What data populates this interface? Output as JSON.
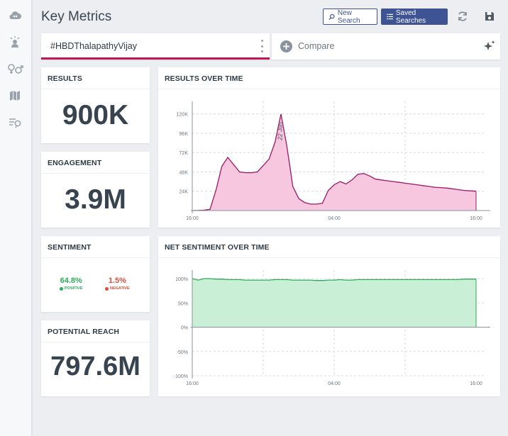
{
  "page": {
    "title": "Key Metrics"
  },
  "sidebar": {
    "icons": [
      "cloud-icon",
      "person-sparkle-icon",
      "gender-icon",
      "map-icon",
      "feedback-icon"
    ]
  },
  "toolbar": {
    "new_search_label": "New Search",
    "saved_searches_label": "Saved Searches",
    "icons": [
      "search-icon",
      "list-icon",
      "refresh-icon",
      "save-icon"
    ]
  },
  "search": {
    "term": "#HBDThalapathyVijay",
    "compare_label": "Compare"
  },
  "colors": {
    "accent": "#c2185b",
    "brand": "#3e5393",
    "positive": "#2eaa5c",
    "negative": "#d54f3b",
    "results_fill": "#f7c6df",
    "sentiment_fill": "#c9efd6"
  },
  "metrics": {
    "results": {
      "title": "RESULTS",
      "value": "900K"
    },
    "engagement": {
      "title": "ENGAGEMENT",
      "value": "3.9M"
    },
    "sentiment": {
      "title": "SENTIMENT",
      "positive_pct": "64.8%",
      "positive_label": "POSITIVE",
      "negative_pct": "1.5%",
      "negative_label": "NEGATIVE"
    },
    "reach": {
      "title": "POTENTIAL REACH",
      "value": "797.6M"
    }
  },
  "chart_data": [
    {
      "type": "area",
      "title": "RESULTS OVER TIME",
      "x_ticks": [
        "16:00",
        "04:00",
        "16:00"
      ],
      "y_ticks": [
        "24K",
        "48K",
        "72K",
        "96K",
        "120K"
      ],
      "ylim": [
        0,
        125000
      ],
      "annotation": "22 Jun",
      "grid": true,
      "x": [
        0,
        1,
        2,
        3,
        4,
        5,
        6,
        7,
        8,
        9,
        10,
        11,
        12,
        13,
        14,
        15,
        16,
        17,
        18,
        19,
        20,
        21,
        22,
        23,
        24,
        25,
        26,
        27,
        28,
        29,
        30,
        31,
        32,
        33,
        34,
        35,
        36,
        37,
        38,
        39,
        40,
        41,
        42,
        43,
        44,
        45,
        46,
        47,
        48
      ],
      "values": [
        0,
        200,
        500,
        1500,
        25000,
        55000,
        66000,
        57000,
        48000,
        47000,
        47000,
        48000,
        56000,
        64000,
        85000,
        120000,
        80000,
        30000,
        15000,
        10000,
        8000,
        8000,
        9000,
        25000,
        32000,
        36000,
        33000,
        38000,
        45000,
        46000,
        43000,
        39000,
        38000,
        37000,
        36000,
        35000,
        34000,
        33000,
        32000,
        31000,
        30000,
        29000,
        28500,
        28000,
        27000,
        26000,
        25000,
        24500,
        24000
      ]
    },
    {
      "type": "area",
      "title": "NET SENTIMENT OVER TIME",
      "x_ticks": [
        "16:00",
        "04:00",
        "16:00"
      ],
      "y_ticks": [
        "-100%",
        "-50%",
        "0%",
        "50%",
        "100%"
      ],
      "ylim": [
        -100,
        100
      ],
      "grid": true,
      "x": [
        0,
        1,
        2,
        3,
        4,
        5,
        6,
        7,
        8,
        9,
        10,
        11,
        12,
        13,
        14,
        15,
        16,
        17,
        18,
        19,
        20,
        21,
        22,
        23,
        24,
        25,
        26,
        27,
        28,
        29,
        30,
        31,
        32,
        33,
        34,
        35,
        36,
        37,
        38,
        39,
        40,
        41,
        42,
        43,
        44,
        45,
        46,
        47,
        48
      ],
      "values": [
        100,
        97,
        100,
        100,
        99,
        99,
        98,
        98,
        98,
        97,
        97,
        97,
        97,
        97,
        98,
        98,
        98,
        97,
        97,
        97,
        97,
        96,
        96,
        97,
        97,
        98,
        97,
        97,
        98,
        98,
        98,
        98,
        98,
        98,
        98,
        98,
        98,
        98,
        98,
        98,
        98,
        98,
        98,
        98,
        98,
        98,
        99,
        99,
        99
      ]
    }
  ]
}
